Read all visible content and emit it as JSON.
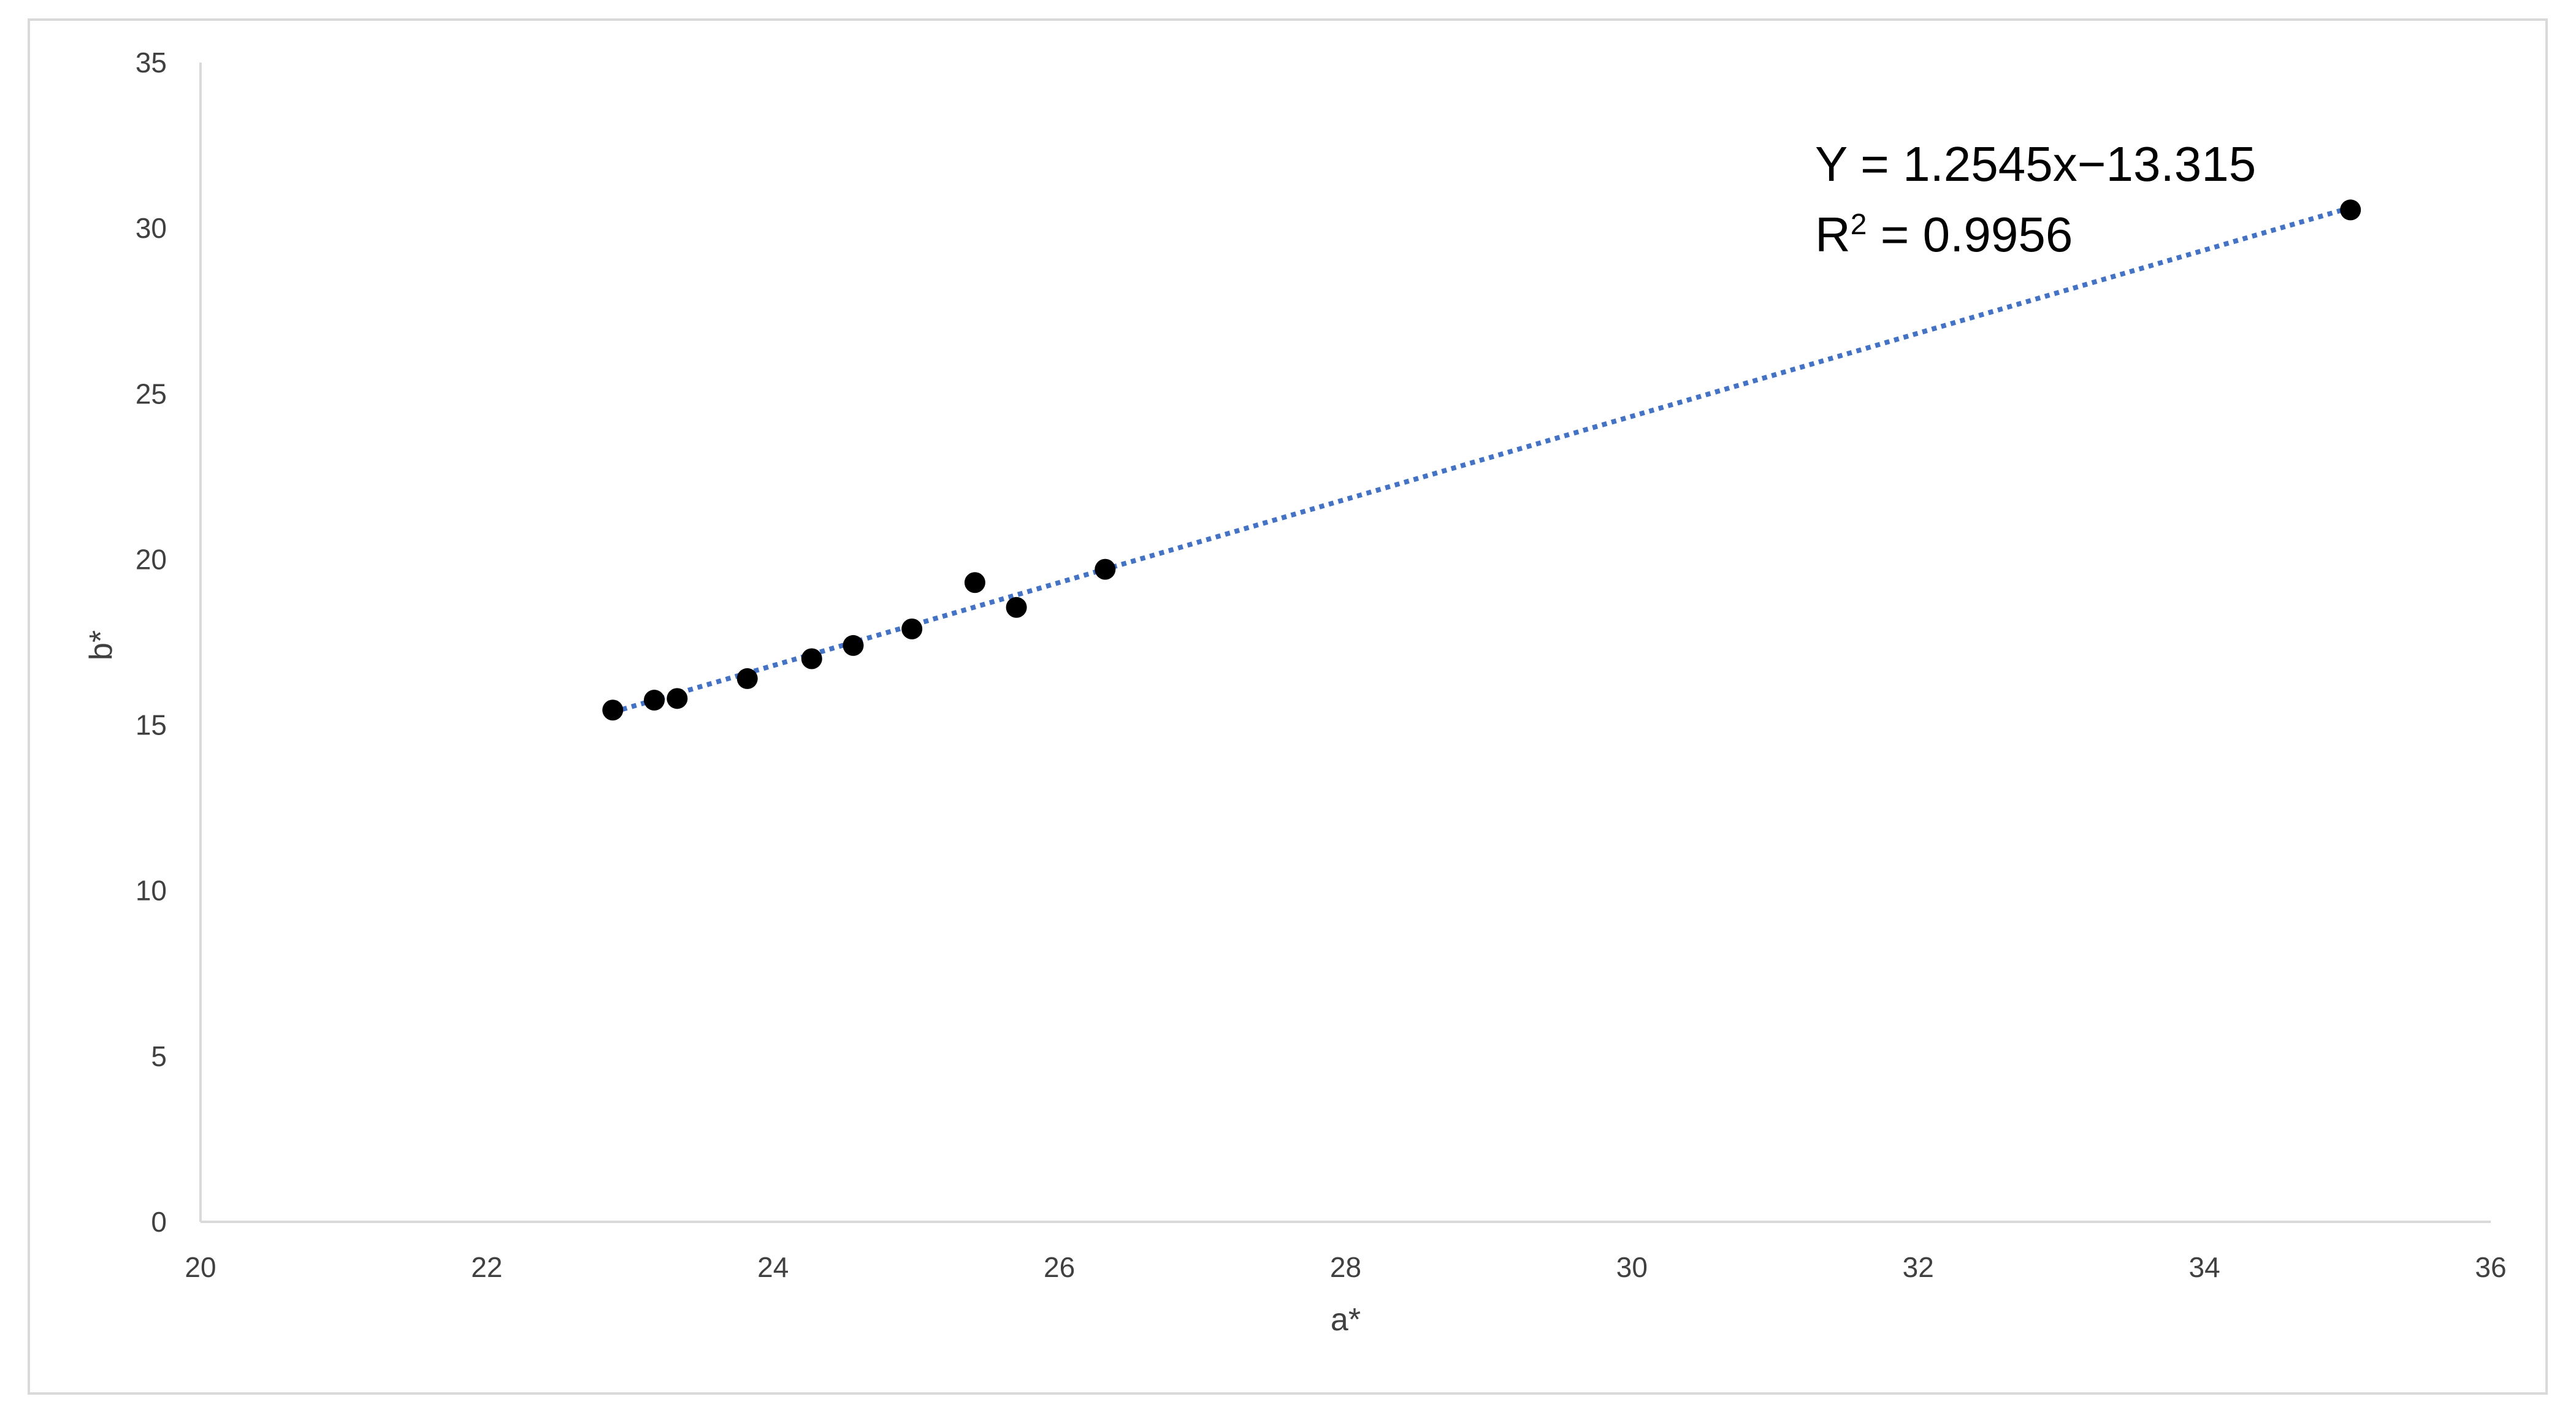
{
  "chart_data": {
    "type": "scatter",
    "xlabel": "a*",
    "ylabel": "b*",
    "xlim": [
      20,
      36
    ],
    "ylim": [
      0,
      35
    ],
    "x_ticks": [
      "20",
      "22",
      "24",
      "26",
      "28",
      "30",
      "32",
      "34",
      "36"
    ],
    "y_ticks": [
      "0",
      "5",
      "10",
      "15",
      "20",
      "25",
      "30",
      "35"
    ],
    "grid": false,
    "legend": "none",
    "series": [
      {
        "points": [
          {
            "x": 22.88,
            "y": 15.45
          },
          {
            "x": 23.17,
            "y": 15.75
          },
          {
            "x": 23.33,
            "y": 15.8
          },
          {
            "x": 23.82,
            "y": 16.4
          },
          {
            "x": 24.27,
            "y": 17.0
          },
          {
            "x": 24.56,
            "y": 17.4
          },
          {
            "x": 24.97,
            "y": 17.9
          },
          {
            "x": 25.41,
            "y": 19.3
          },
          {
            "x": 25.7,
            "y": 18.55
          },
          {
            "x": 26.32,
            "y": 19.7
          },
          {
            "x": 35.02,
            "y": 30.55
          }
        ]
      }
    ],
    "trendline": {
      "type": "linear",
      "slope": 1.2545,
      "intercept": -13.315,
      "x_range": [
        22.88,
        35.02
      ],
      "style": "dotted",
      "color": "#4472c4",
      "equation_label": "Y = 1.2545x−13.315",
      "r2_prefix": "R",
      "r2_superscript": "2",
      "r2_value": " = 0.9956"
    },
    "marker_color": "#000000",
    "axis_color": "#d9d9d9"
  }
}
